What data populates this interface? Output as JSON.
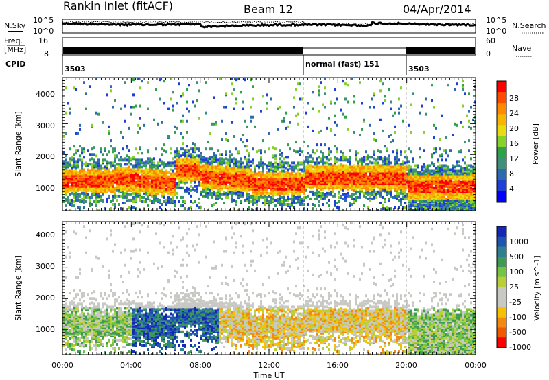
{
  "header": {
    "title": "Rankin Inlet (fitACF)",
    "beam": "Beam 12",
    "date": "04/Apr/2014"
  },
  "nsky_panel": {
    "label": "N.Sky",
    "y_ticks": [
      "10^5",
      "10^0"
    ],
    "right_label": "N.Search",
    "right_ticks": [
      "10^5",
      "10^0"
    ]
  },
  "freq_panel": {
    "label_line1": "Freq.",
    "label_line2": "[MHz]",
    "left_ticks": [
      "16",
      "8"
    ],
    "right_label": "Nave",
    "right_ticks": [
      "60",
      "0"
    ]
  },
  "cpid_panel": {
    "label": "CPID",
    "segments": [
      "3503",
      "normal (fast) 151",
      "3503"
    ]
  },
  "power_panel": {
    "ylabel": "Slant Range [km]",
    "y_ticks": [
      "1000",
      "2000",
      "3000",
      "4000"
    ],
    "colorbar_label": "Power [dB]",
    "colorbar_ticks": [
      "28",
      "24",
      "20",
      "16",
      "12",
      "8",
      "4"
    ],
    "colorbar_colors": [
      "#ff0000",
      "#ff4a00",
      "#ff8a00",
      "#f7b700",
      "#e8dc10",
      "#88d02a",
      "#2ea24a",
      "#3f8f7a",
      "#2f6ab0",
      "#1e3fd8",
      "#0000ff"
    ]
  },
  "velocity_panel": {
    "ylabel": "Slant Range [km]",
    "y_ticks": [
      "1000",
      "2000",
      "3000",
      "4000"
    ],
    "colorbar_label": "Velocity [m s^-1]",
    "colorbar_ticks": [
      "1000",
      "500",
      "100",
      "25",
      "-25",
      "-100",
      "-500",
      "-1000"
    ],
    "colorbar_colors": [
      "#1428b4",
      "#1f55b0",
      "#2e7f8f",
      "#3f9a55",
      "#76c542",
      "#b9cf37",
      "#c8c8c4",
      "#c8c8c4",
      "#f7c000",
      "#f38a10",
      "#ef5a00",
      "#ff0000"
    ]
  },
  "x_axis": {
    "label": "Time UT",
    "ticks": [
      "00:00",
      "04:00",
      "08:00",
      "12:00",
      "16:00",
      "20:00",
      "00:00"
    ]
  },
  "chart_data": {
    "type": "heatmap",
    "title": "Rankin Inlet (fitACF)",
    "subtitle": "Beam 12 04/Apr/2014",
    "xlabel": "Time UT",
    "x_range_hours": [
      0,
      24
    ],
    "ylabel": "Slant Range [km]",
    "ylim": [
      180,
      4500
    ],
    "mode_changes_ut": [
      "14:00",
      "20:00"
    ],
    "cpid_segments": [
      {
        "start": "00:00",
        "end": "14:00",
        "cpid": "3503"
      },
      {
        "start": "14:00",
        "end": "20:00",
        "cpid": "normal (fast) 151"
      },
      {
        "start": "20:00",
        "end": "24:00",
        "cpid": "3503"
      }
    ],
    "series": [
      {
        "name": "Power [dB]",
        "scale": [
          0,
          32
        ]
      },
      {
        "name": "Velocity [m s^-1]",
        "scale": [
          -1000,
          1000
        ]
      }
    ],
    "nave_range": [
      0,
      60
    ],
    "freq_range_mhz": [
      8,
      16
    ],
    "log_scale_noise": [
      1,
      100000
    ]
  }
}
